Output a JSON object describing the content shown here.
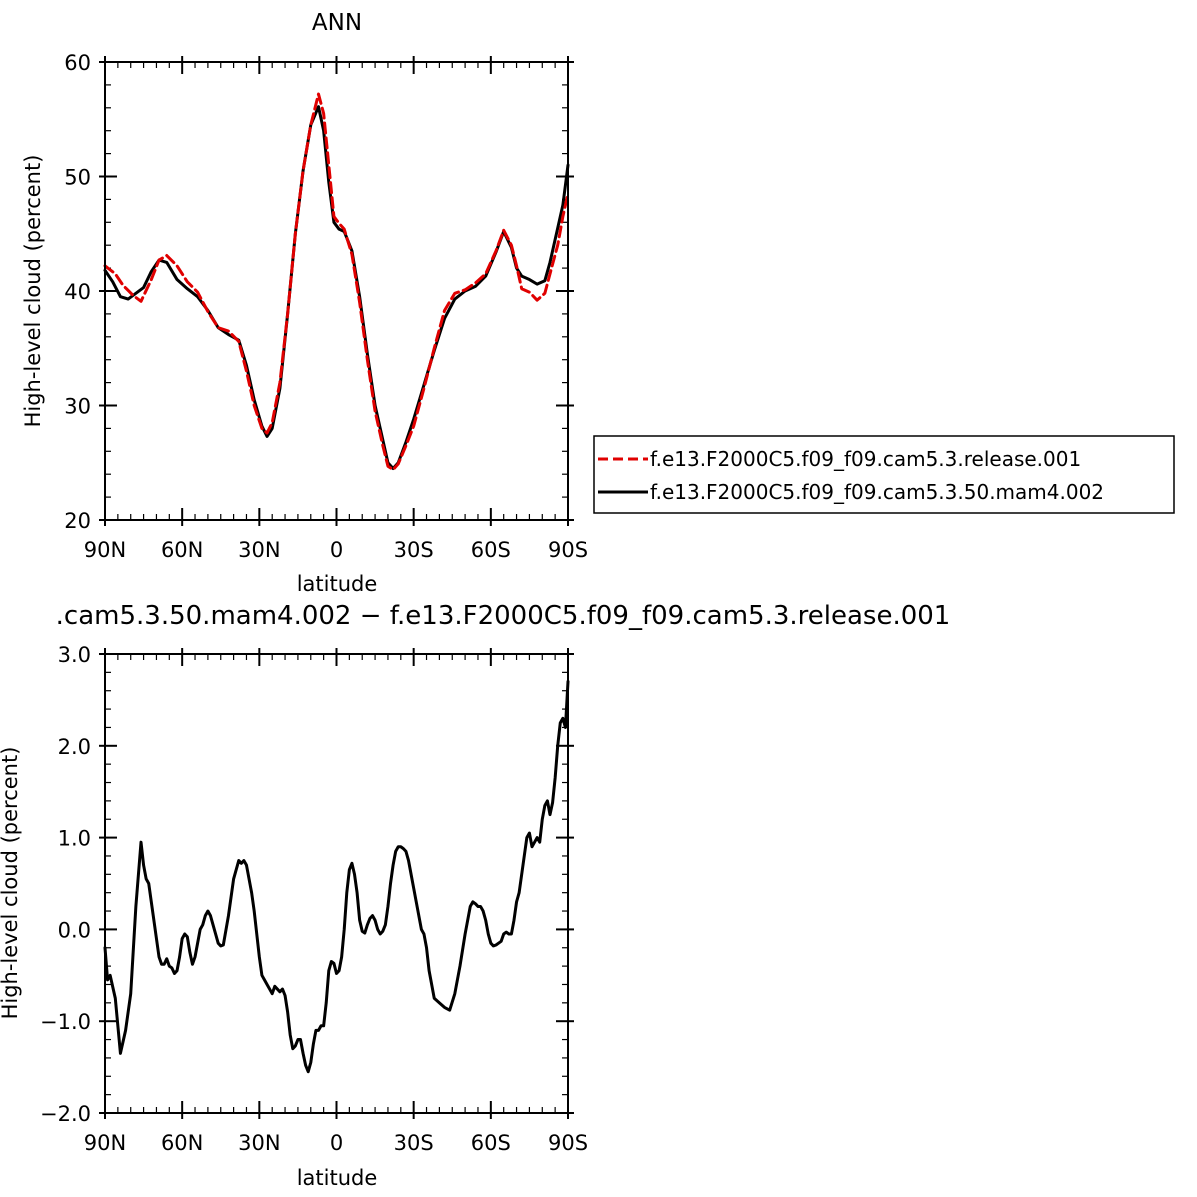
{
  "chart_data": [
    {
      "type": "line",
      "title": "ANN",
      "xlabel": "latitude",
      "ylabel": "High-level cloud  (percent)",
      "xlim": [
        90,
        -90
      ],
      "ylim": [
        20,
        60
      ],
      "xticks": [
        90,
        60,
        30,
        0,
        -30,
        -60,
        -90
      ],
      "xtick_labels": [
        "90N",
        "60N",
        "30N",
        "0",
        "30S",
        "60S",
        "90S"
      ],
      "yticks": [
        20,
        30,
        40,
        50,
        60
      ],
      "ytick_labels": [
        "20",
        "30",
        "40",
        "50",
        "60"
      ],
      "legend": {
        "placement": "right-outside",
        "entries": [
          "f.e13.F2000C5.f09_f09.cam5.3.release.001",
          "f.e13.F2000C5.f09_f09.cam5.3.50.mam4.002"
        ]
      },
      "series": [
        {
          "name": "f.e13.F2000C5.f09_f09.cam5.3.release.001",
          "color": "#e00000",
          "dash": true,
          "x": [
            90,
            86,
            83,
            79,
            76,
            72,
            69,
            66,
            62,
            58,
            54,
            50,
            46,
            42,
            38,
            35,
            32,
            29,
            27,
            25,
            22,
            19,
            16,
            13,
            10,
            7,
            5,
            3,
            1,
            -1,
            -3,
            -6,
            -9,
            -12,
            -15,
            -18,
            -20,
            -22,
            -24,
            -27,
            -30,
            -34,
            -38,
            -42,
            -46,
            -50,
            -54,
            -58,
            -62,
            -65,
            -68,
            -70,
            -72,
            -75,
            -78,
            -81,
            -83,
            -86,
            -88,
            -90
          ],
          "y": [
            42.2,
            41.5,
            40.5,
            39.6,
            39.1,
            41,
            42.7,
            43.1,
            42.2,
            40.8,
            39.9,
            38.2,
            36.8,
            36.5,
            35.6,
            33,
            30,
            28,
            27.6,
            28.5,
            32,
            38,
            45,
            50.5,
            54.5,
            57.2,
            55.5,
            51,
            46.5,
            45.9,
            45.4,
            43.2,
            39,
            34,
            29.5,
            26.5,
            24.7,
            24.4,
            24.9,
            26.5,
            28.2,
            31.5,
            35,
            38.3,
            39.8,
            40.1,
            40.7,
            41.5,
            43.5,
            45.3,
            44,
            42.2,
            40.2,
            39.9,
            39.2,
            39.8,
            41.5,
            44,
            46.5,
            48.5
          ]
        },
        {
          "name": "f.e13.F2000C5.f09_f09.cam5.3.50.mam4.002",
          "color": "#000000",
          "dash": false,
          "x": [
            90,
            87,
            84,
            81,
            78,
            75,
            72,
            69,
            66,
            62,
            58,
            54,
            50,
            46,
            42,
            38,
            35,
            32,
            29,
            27,
            25,
            22,
            19,
            16,
            13,
            10,
            7,
            5,
            3,
            1,
            -1,
            -3,
            -6,
            -9,
            -12,
            -15,
            -18,
            -20,
            -22,
            -24,
            -27,
            -30,
            -34,
            -38,
            -42,
            -46,
            -50,
            -54,
            -58,
            -62,
            -65,
            -68,
            -70,
            -72,
            -75,
            -78,
            -81,
            -83,
            -86,
            -88,
            -90
          ],
          "y": [
            41.8,
            40.8,
            39.5,
            39.3,
            39.8,
            40.3,
            41.7,
            42.7,
            42.5,
            41,
            40.2,
            39.5,
            38.3,
            36.8,
            36.2,
            35.7,
            33.5,
            30.5,
            28.2,
            27.3,
            28,
            31.5,
            38,
            45,
            50.5,
            54.5,
            56.1,
            54,
            49.5,
            46,
            45.4,
            45.2,
            43.5,
            39.5,
            34.5,
            30,
            27,
            25,
            24.5,
            25,
            26.8,
            28.8,
            31.8,
            34.8,
            37.6,
            39.3,
            40,
            40.4,
            41.3,
            43.4,
            45.2,
            43.8,
            42,
            41.3,
            41,
            40.6,
            40.9,
            42.5,
            45.5,
            47.5,
            51
          ]
        }
      ]
    },
    {
      "type": "line",
      "title": ".cam5.3.50.mam4.002 − f.e13.F2000C5.f09_f09.cam5.3.release.001",
      "xlabel": "latitude",
      "ylabel": "High-level cloud  (percent)",
      "xlim": [
        90,
        -90
      ],
      "ylim": [
        -2.0,
        3.0
      ],
      "xticks": [
        90,
        60,
        30,
        0,
        -30,
        -60,
        -90
      ],
      "xtick_labels": [
        "90N",
        "60N",
        "30N",
        "0",
        "30S",
        "60S",
        "90S"
      ],
      "yticks": [
        -2.0,
        -1.0,
        0.0,
        1.0,
        2.0,
        3.0
      ],
      "ytick_labels": [
        "−2.0",
        "−1.0",
        "0.0",
        "1.0",
        "2.0",
        "3.0"
      ],
      "series": [
        {
          "color": "#000000",
          "dash": false,
          "x": [
            90,
            89,
            88,
            86,
            84,
            82,
            80,
            78,
            76,
            75,
            74,
            73,
            72,
            71,
            70,
            69,
            68,
            67,
            66,
            65,
            64,
            63,
            62,
            61,
            60,
            59,
            58,
            57,
            56,
            55,
            54,
            53,
            52,
            51,
            50,
            49,
            48,
            47,
            46,
            45,
            44,
            42,
            40,
            39,
            38,
            37,
            36,
            35,
            34,
            33,
            32,
            31,
            30,
            29,
            28,
            27,
            26,
            25,
            24,
            23,
            22,
            21,
            20,
            19,
            18,
            17,
            16,
            15,
            14,
            13,
            12,
            11,
            10,
            9,
            8,
            7,
            6,
            5,
            4,
            3,
            2,
            1,
            0,
            -1,
            -2,
            -3,
            -4,
            -5,
            -6,
            -7,
            -8,
            -9,
            -10,
            -11,
            -12,
            -13,
            -14,
            -15,
            -16,
            -17,
            -18,
            -19,
            -20,
            -21,
            -22,
            -23,
            -24,
            -25,
            -26,
            -27,
            -28,
            -29,
            -30,
            -31,
            -32,
            -33,
            -34,
            -35,
            -36,
            -38,
            -40,
            -42,
            -44,
            -46,
            -48,
            -50,
            -51,
            -52,
            -53,
            -54,
            -55,
            -56,
            -57,
            -58,
            -59,
            -60,
            -61,
            -62,
            -63,
            -64,
            -65,
            -66,
            -67,
            -68,
            -69,
            -70,
            -71,
            -72,
            -73,
            -74,
            -75,
            -76,
            -77,
            -78,
            -79,
            -80,
            -81,
            -82,
            -83,
            -84,
            -85,
            -86,
            -87,
            -88,
            -89,
            -90
          ],
          "y": [
            -0.2,
            -0.55,
            -0.5,
            -0.75,
            -1.35,
            -1.1,
            -0.7,
            0.25,
            0.95,
            0.7,
            0.55,
            0.5,
            0.3,
            0.1,
            -0.1,
            -0.3,
            -0.38,
            -0.38,
            -0.32,
            -0.4,
            -0.42,
            -0.48,
            -0.45,
            -0.3,
            -0.1,
            -0.05,
            -0.08,
            -0.25,
            -0.38,
            -0.3,
            -0.15,
            0.0,
            0.05,
            0.15,
            0.2,
            0.15,
            0.05,
            -0.05,
            -0.15,
            -0.18,
            -0.17,
            0.15,
            0.55,
            0.65,
            0.75,
            0.72,
            0.75,
            0.7,
            0.55,
            0.4,
            0.2,
            -0.05,
            -0.3,
            -0.5,
            -0.55,
            -0.6,
            -0.65,
            -0.7,
            -0.62,
            -0.65,
            -0.68,
            -0.65,
            -0.72,
            -0.9,
            -1.15,
            -1.3,
            -1.27,
            -1.2,
            -1.2,
            -1.35,
            -1.48,
            -1.55,
            -1.45,
            -1.25,
            -1.1,
            -1.1,
            -1.05,
            -1.05,
            -0.8,
            -0.45,
            -0.35,
            -0.37,
            -0.48,
            -0.45,
            -0.3,
            0.0,
            0.4,
            0.65,
            0.72,
            0.6,
            0.4,
            0.1,
            -0.02,
            -0.04,
            0.05,
            0.12,
            0.15,
            0.1,
            0.0,
            -0.05,
            -0.02,
            0.05,
            0.25,
            0.5,
            0.7,
            0.85,
            0.9,
            0.9,
            0.88,
            0.85,
            0.75,
            0.6,
            0.45,
            0.3,
            0.15,
            0.0,
            -0.05,
            -0.2,
            -0.45,
            -0.75,
            -0.8,
            -0.85,
            -0.88,
            -0.7,
            -0.4,
            -0.05,
            0.1,
            0.25,
            0.3,
            0.28,
            0.25,
            0.25,
            0.2,
            0.1,
            -0.05,
            -0.15,
            -0.18,
            -0.17,
            -0.15,
            -0.13,
            -0.05,
            -0.03,
            -0.05,
            -0.05,
            0.1,
            0.3,
            0.4,
            0.6,
            0.8,
            1.0,
            1.05,
            0.9,
            0.95,
            1.0,
            0.95,
            1.2,
            1.35,
            1.4,
            1.25,
            1.38,
            1.65,
            2.0,
            2.25,
            2.3,
            2.2,
            2.7
          ]
        }
      ]
    }
  ]
}
